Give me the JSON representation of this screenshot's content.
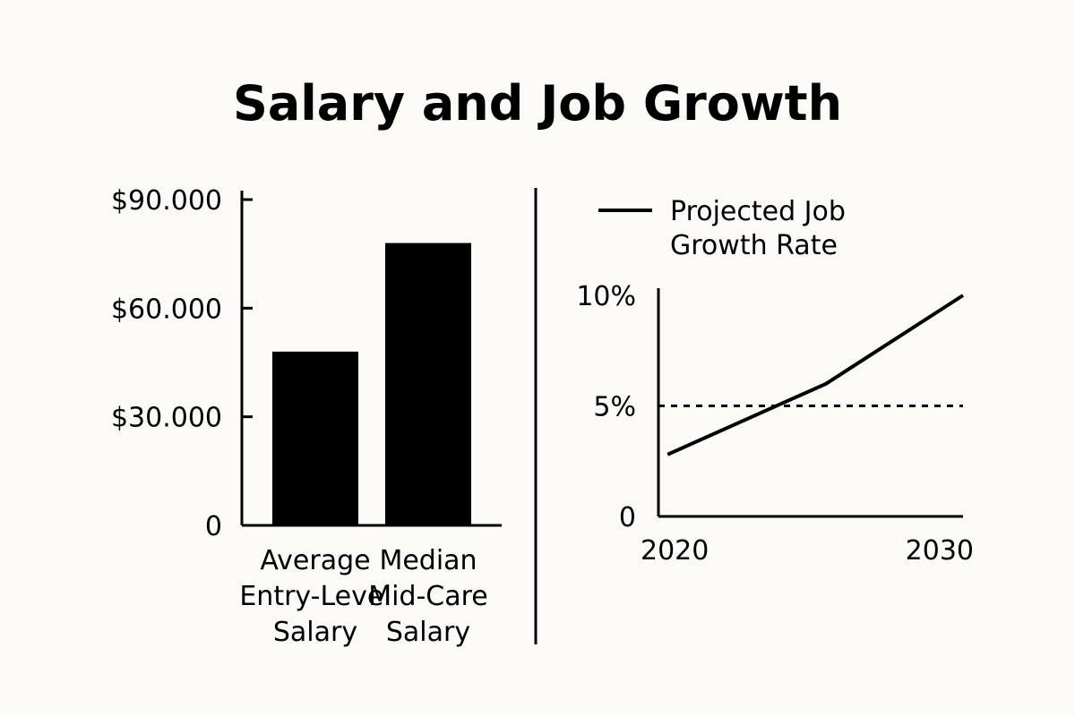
{
  "title": "Salary and Job Growth",
  "colors": {
    "background": "#fbfaf6",
    "ink": "#000000"
  },
  "chart_data": [
    {
      "type": "bar",
      "categories": [
        [
          "Average",
          "Entry-Level",
          "Salary"
        ],
        [
          "Median",
          "Mid-Care",
          "Salary"
        ]
      ],
      "values": [
        48000,
        78000
      ],
      "yticks": [
        0,
        30000,
        60000,
        90000
      ],
      "ytick_labels": [
        "0",
        "$30.000",
        "$60.000",
        "$90.000"
      ],
      "ylim": [
        0,
        90000
      ],
      "xlabel": "",
      "ylabel": ""
    },
    {
      "type": "line",
      "legend": [
        "Projected Job",
        "Growth Rate"
      ],
      "series": [
        {
          "name": "Projected Job Growth Rate",
          "x": [
            2020.3,
            2025.5,
            2030
          ],
          "y": [
            2.8,
            6.0,
            10.0
          ]
        }
      ],
      "reference_line": {
        "y": 5,
        "style": "dashed"
      },
      "xticks": [
        2020,
        2030
      ],
      "xtick_labels": [
        "2020",
        "2030"
      ],
      "yticks": [
        0,
        5,
        10
      ],
      "ytick_labels": [
        "0",
        "5%",
        "10%"
      ],
      "xlim": [
        2020,
        2030
      ],
      "ylim": [
        0,
        10
      ],
      "xlabel": "",
      "ylabel": ""
    }
  ]
}
